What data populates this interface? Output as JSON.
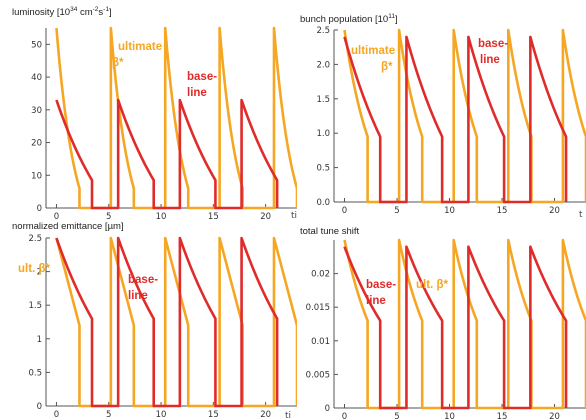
{
  "colors": {
    "ultimate": "#F5A623",
    "baseline": "#E02B2B",
    "axis": "#555555",
    "grid": "#cccccc"
  },
  "panels": {
    "lumi": {
      "title_main": "luminosity [10",
      "title_exp1": "34",
      "title_mid": " cm",
      "title_exp2": "-2",
      "title_s": "s",
      "title_exp3": "-1",
      "title_end": "]",
      "x_label": "ti",
      "ann_ultimate_1": "ultimate",
      "ann_ultimate_2": "β*",
      "ann_baseline_1": "base-",
      "ann_baseline_2": "line"
    },
    "bunch": {
      "title_main": "bunch population [10",
      "title_exp": "11",
      "title_end": "]",
      "x_label": "t",
      "ann_ultimate_1": "ultimate",
      "ann_ultimate_2": "β*",
      "ann_baseline_1": "base-",
      "ann_baseline_2": "line"
    },
    "emit": {
      "title": "normalized emittance [µm]",
      "x_label": "ti",
      "ann_ultimate": "ult. β*",
      "ann_baseline_1": "base-",
      "ann_baseline_2": "line"
    },
    "tune": {
      "title": "total tune shift",
      "x_label": "",
      "ann_ultimate": "ult. β*",
      "ann_baseline_1": "base-",
      "ann_baseline_2": "line"
    }
  },
  "chart_data": [
    {
      "id": "lumi",
      "type": "line",
      "title": "luminosity [10^34 cm^-2 s^-1]",
      "xlim": [
        -1,
        23
      ],
      "ylim": [
        0,
        55
      ],
      "xticks": [
        0,
        5,
        10,
        15,
        20
      ],
      "yticks": [
        0,
        10,
        20,
        30,
        40,
        50
      ],
      "series": [
        {
          "name": "ultimate β*",
          "color": "#F5A623",
          "shape": "decay",
          "cycles": [
            [
              0,
              2.2
            ],
            [
              5.2,
              7.4
            ],
            [
              10.4,
              12.6
            ],
            [
              15.6,
              17.8
            ],
            [
              20.8,
              23
            ]
          ],
          "peak": 55,
          "end": 6,
          "tau": 0.8
        },
        {
          "name": "baseline",
          "color": "#E02B2B",
          "shape": "decay",
          "cycles": [
            [
              0,
              3.4
            ],
            [
              5.9,
              9.3
            ],
            [
              11.8,
              15.2
            ],
            [
              17.7,
              21.1
            ]
          ],
          "peak": 33,
          "end": 8.5,
          "tau": 1.8
        }
      ]
    },
    {
      "id": "bunch",
      "type": "line",
      "title": "bunch population [10^11]",
      "xlim": [
        -1,
        23
      ],
      "ylim": [
        0,
        2.5
      ],
      "xticks": [
        0,
        5,
        10,
        15,
        20
      ],
      "yticks": [
        0,
        0.5,
        1,
        1.5,
        2,
        2.5
      ],
      "series": [
        {
          "name": "ultimate β*",
          "color": "#F5A623",
          "shape": "decay",
          "cycles": [
            [
              0,
              2.2
            ],
            [
              5.2,
              7.4
            ],
            [
              10.4,
              12.6
            ],
            [
              15.6,
              17.8
            ],
            [
              20.8,
              23
            ]
          ],
          "peak": 2.5,
          "end": 0.95,
          "tau": 1.2
        },
        {
          "name": "baseline",
          "color": "#E02B2B",
          "shape": "decay",
          "cycles": [
            [
              0,
              3.4
            ],
            [
              5.9,
              9.3
            ],
            [
              11.8,
              15.2
            ],
            [
              17.7,
              21.1
            ]
          ],
          "peak": 2.4,
          "end": 0.95,
          "tau": 1.8
        }
      ]
    },
    {
      "id": "emit",
      "type": "line",
      "title": "normalized emittance [µm]",
      "xlim": [
        -1,
        23
      ],
      "ylim": [
        0,
        2.5
      ],
      "xticks": [
        0,
        5,
        10,
        15,
        20
      ],
      "yticks": [
        0,
        0.5,
        1,
        1.5,
        2,
        2.5
      ],
      "series": [
        {
          "name": "ultimate β*",
          "color": "#F5A623",
          "shape": "linear",
          "cycles": [
            [
              0,
              2.2
            ],
            [
              5.2,
              7.4
            ],
            [
              10.4,
              12.6
            ],
            [
              15.6,
              17.8
            ],
            [
              20.8,
              23
            ]
          ],
          "peak": 2.5,
          "end": 1.2,
          "tau": 1
        },
        {
          "name": "baseline",
          "color": "#E02B2B",
          "shape": "decay",
          "cycles": [
            [
              0,
              3.4
            ],
            [
              5.9,
              9.3
            ],
            [
              11.8,
              15.2
            ],
            [
              17.7,
              21.1
            ]
          ],
          "peak": 2.5,
          "end": 1.3,
          "tau": 2
        }
      ]
    },
    {
      "id": "tune",
      "type": "line",
      "title": "total tune shift",
      "xlim": [
        -1,
        23
      ],
      "ylim": [
        0,
        0.025
      ],
      "xticks": [
        0,
        5,
        10,
        15,
        20
      ],
      "yticks": [
        0,
        0.005,
        0.01,
        0.015,
        0.02
      ],
      "series": [
        {
          "name": "ultimate β*",
          "color": "#F5A623",
          "shape": "decay",
          "cycles": [
            [
              0,
              2.2
            ],
            [
              5.2,
              7.4
            ],
            [
              10.4,
              12.6
            ],
            [
              15.6,
              17.8
            ],
            [
              20.8,
              23
            ]
          ],
          "peak": 0.025,
          "end": 0.013,
          "tau": 1.5
        },
        {
          "name": "baseline",
          "color": "#E02B2B",
          "shape": "decay",
          "cycles": [
            [
              0,
              3.4
            ],
            [
              5.9,
              9.3
            ],
            [
              11.8,
              15.2
            ],
            [
              17.7,
              21.1
            ]
          ],
          "peak": 0.024,
          "end": 0.013,
          "tau": 2
        }
      ]
    }
  ]
}
